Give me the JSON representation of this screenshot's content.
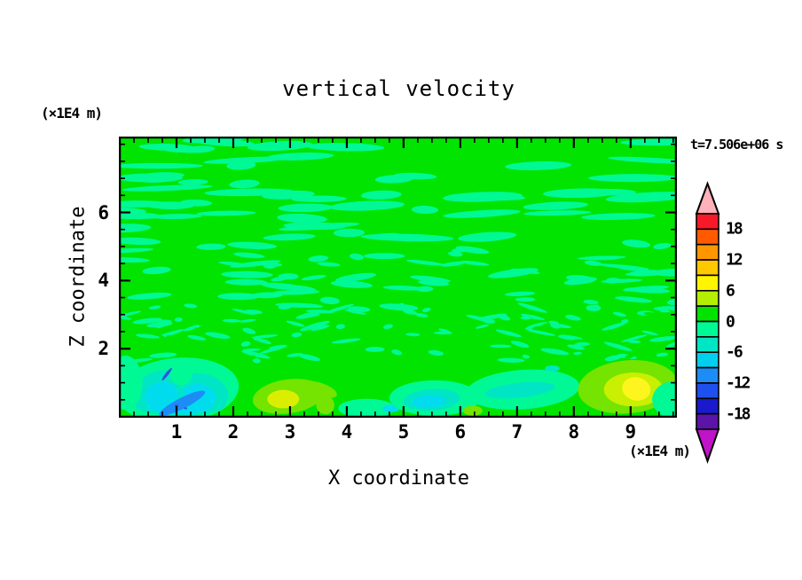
{
  "title": "vertical velocity",
  "timestamp": "t=7.506e+06 s",
  "axes": {
    "x": {
      "label": "X coordinate",
      "unit": "(×1E4 m)",
      "range": [
        0,
        9.8
      ],
      "major_ticks": [
        1,
        2,
        3,
        4,
        5,
        6,
        7,
        8,
        9
      ],
      "minor_step": 0.25
    },
    "z": {
      "label": "Z coordinate",
      "unit": "(×1E4 m)",
      "range": [
        0,
        8.2
      ],
      "major_ticks": [
        2,
        4,
        6
      ],
      "minor_step": 0.5
    }
  },
  "colorbar": {
    "labels": [
      "18",
      "12",
      "6",
      "0",
      "-6",
      "-12",
      "-18"
    ],
    "level_min": -21,
    "level_max": 21,
    "interval": 3,
    "colors_top_to_bottom": [
      "#F81928",
      "#FF5A00",
      "#FF9600",
      "#FFC800",
      "#FFF500",
      "#B4EE00",
      "#00E400",
      "#00F995",
      "#00E6C4",
      "#00CFEF",
      "#1E8CF5",
      "#1E50F0",
      "#1A1ACC",
      "#5A14A8"
    ],
    "over_arrow_color": "#FFB0B8",
    "under_arrow_color": "#C014C8",
    "outline_color": "#000000"
  },
  "palette": {
    "green": "#00E400",
    "spring": "#00F995",
    "aqua": "#00E6C4",
    "cyan": "#00DCEE",
    "dodger": "#1E8CF5",
    "blue": "#2858E0",
    "chartreuse": "#74E400",
    "yellowgreen": "#C8F000",
    "yellow": "#FFF51E",
    "yellow_soft": "#DCEE00"
  },
  "chart_data": {
    "type": "heatmap",
    "title": "vertical velocity",
    "xlabel": "X coordinate",
    "ylabel": "Z coordinate",
    "axis_units": "(×1E4 m)",
    "time_annotation": "t=7.506e+06 s",
    "x_range": [
      0,
      9.8
    ],
    "z_range": [
      0,
      8.2
    ],
    "contour_interval": 3,
    "level_range": [
      -21,
      21
    ],
    "field_summary": "Turbulent vertical-velocity field; interior mottled between -3..0 (spring green) and 0..3 (green) bands; stronger cells confined below z=1.7",
    "background_bands": {
      "weak_positive_0_to_3": "green",
      "weak_negative_-3_to_0": "spring"
    },
    "texture": {
      "seed": 12,
      "zones": [
        {
          "y0": 0.0,
          "y1": 0.4,
          "count": 58,
          "wMin": 30,
          "wMax": 105,
          "hMin": 5,
          "hMax": 11,
          "tilt": 4,
          "color": "spring"
        },
        {
          "y0": 0.38,
          "y1": 0.62,
          "count": 66,
          "wMin": 16,
          "wMax": 60,
          "hMin": 4,
          "hMax": 9,
          "tilt": 9,
          "color": "spring"
        },
        {
          "y0": 0.6,
          "y1": 0.8,
          "count": 95,
          "wMin": 8,
          "wMax": 36,
          "hMin": 3,
          "hMax": 6,
          "tilt": 18,
          "color": "spring"
        },
        {
          "y0": 0.62,
          "y1": 0.79,
          "count": 45,
          "wMin": 5,
          "wMax": 18,
          "hMin": 2,
          "hMax": 5,
          "tilt": 20,
          "color": "green"
        }
      ]
    },
    "features": [
      {
        "name": "downdraft-halo",
        "color": "spring",
        "x": 1.02,
        "z": 0.78,
        "rx": 1.08,
        "ry": 0.95,
        "rot": -5
      },
      {
        "name": "downdraft-aqua-left-lobe",
        "color": "aqua",
        "x": 0.72,
        "z": 0.75,
        "rx": 0.46,
        "ry": 0.6,
        "rot": -14
      },
      {
        "name": "downdraft-aqua-right-lobe",
        "color": "aqua",
        "x": 1.44,
        "z": 0.72,
        "rx": 0.48,
        "ry": 0.55,
        "rot": 12
      },
      {
        "name": "downdraft-aqua-base",
        "color": "aqua",
        "x": 1.06,
        "z": 0.34,
        "rx": 0.8,
        "ry": 0.3,
        "rot": 0
      },
      {
        "name": "downdraft-cyan-left",
        "color": "cyan",
        "x": 0.73,
        "z": 0.62,
        "rx": 0.3,
        "ry": 0.4,
        "rot": -14
      },
      {
        "name": "downdraft-cyan-right",
        "color": "cyan",
        "x": 1.4,
        "z": 0.6,
        "rx": 0.3,
        "ry": 0.36,
        "rot": 12
      },
      {
        "name": "downdraft-cyan-base",
        "color": "cyan",
        "x": 1.05,
        "z": 0.3,
        "rx": 0.55,
        "ry": 0.22,
        "rot": 0
      },
      {
        "name": "downdraft-notch",
        "color": "spring",
        "x": 1.08,
        "z": 1.3,
        "rx": 0.2,
        "ry": 0.38,
        "rot": 0
      },
      {
        "name": "downdraft-core-blue",
        "color": "dodger",
        "x": 1.1,
        "z": 0.4,
        "rx": 0.45,
        "ry": 0.16,
        "rot": -27
      },
      {
        "name": "downdraft-blue-streak",
        "color": "blue",
        "x": 0.83,
        "z": 1.25,
        "rx": 0.14,
        "ry": 0.045,
        "rot": -52
      },
      {
        "name": "downdraft-dot-1",
        "color": "blue",
        "x": 1.0,
        "z": 0.33,
        "rx": 0.035,
        "ry": 0.035,
        "rot": 0
      },
      {
        "name": "downdraft-dot-2",
        "color": "blue",
        "x": 1.16,
        "z": 0.25,
        "rx": 0.03,
        "ry": 0.03,
        "rot": 0
      },
      {
        "name": "updraft-a-outer",
        "color": "chartreuse",
        "x": 2.97,
        "z": 0.6,
        "rx": 0.63,
        "ry": 0.5,
        "rot": -8
      },
      {
        "name": "updraft-a-core",
        "color": "yellow_soft",
        "x": 2.88,
        "z": 0.52,
        "rx": 0.28,
        "ry": 0.27,
        "rot": 0
      },
      {
        "name": "updraft-a-side-patch-up",
        "color": "chartreuse",
        "x": 3.52,
        "z": 0.8,
        "rx": 0.32,
        "ry": 0.2,
        "rot": 18
      },
      {
        "name": "updraft-a-side-patch-low",
        "color": "chartreuse",
        "x": 3.62,
        "z": 0.35,
        "rx": 0.16,
        "ry": 0.28,
        "rot": -15
      },
      {
        "name": "bottom-spring-patch",
        "color": "spring",
        "x": 4.35,
        "z": 0.25,
        "rx": 0.5,
        "ry": 0.28,
        "rot": 0
      },
      {
        "name": "cyan-dot",
        "color": "cyan",
        "x": 4.78,
        "z": 0.24,
        "rx": 0.15,
        "ry": 0.11,
        "rot": 0
      },
      {
        "name": "midline-halo",
        "color": "spring",
        "x": 5.55,
        "z": 0.55,
        "rx": 0.8,
        "ry": 0.52,
        "rot": 0
      },
      {
        "name": "midline-aqua",
        "color": "aqua",
        "x": 5.5,
        "z": 0.5,
        "rx": 0.5,
        "ry": 0.32,
        "rot": -4
      },
      {
        "name": "midline-cyan-core",
        "color": "cyan",
        "x": 5.45,
        "z": 0.45,
        "rx": 0.3,
        "ry": 0.19,
        "rot": -4
      },
      {
        "name": "chartreuse-dot",
        "color": "chartreuse",
        "x": 6.22,
        "z": 0.18,
        "rx": 0.17,
        "ry": 0.15,
        "rot": 0
      },
      {
        "name": "right-spring-band",
        "color": "spring",
        "x": 7.1,
        "z": 0.8,
        "rx": 1.0,
        "ry": 0.58,
        "rot": -4
      },
      {
        "name": "right-aqua-band",
        "color": "aqua",
        "x": 7.05,
        "z": 0.78,
        "rx": 0.62,
        "ry": 0.22,
        "rot": -6
      },
      {
        "name": "tiny-aqua-dot",
        "color": "aqua",
        "x": 7.62,
        "z": 1.42,
        "rx": 0.13,
        "ry": 0.09,
        "rot": 0
      },
      {
        "name": "updraft-b-outer",
        "color": "chartreuse",
        "x": 8.95,
        "z": 0.88,
        "rx": 0.88,
        "ry": 0.78,
        "rot": -5
      },
      {
        "name": "updraft-b-mid",
        "color": "yellowgreen",
        "x": 9.05,
        "z": 0.8,
        "rx": 0.52,
        "ry": 0.5,
        "rot": 0
      },
      {
        "name": "updraft-b-core",
        "color": "yellow",
        "x": 9.1,
        "z": 0.82,
        "rx": 0.25,
        "ry": 0.34,
        "rot": 12
      },
      {
        "name": "right-edge-spring",
        "color": "spring",
        "x": 9.78,
        "z": 0.5,
        "rx": 0.4,
        "ry": 0.55,
        "rot": 0
      },
      {
        "name": "left-edge-spring",
        "color": "spring",
        "x": 0.1,
        "z": 1.0,
        "rx": 0.3,
        "ry": 0.8,
        "rot": 0
      }
    ]
  }
}
